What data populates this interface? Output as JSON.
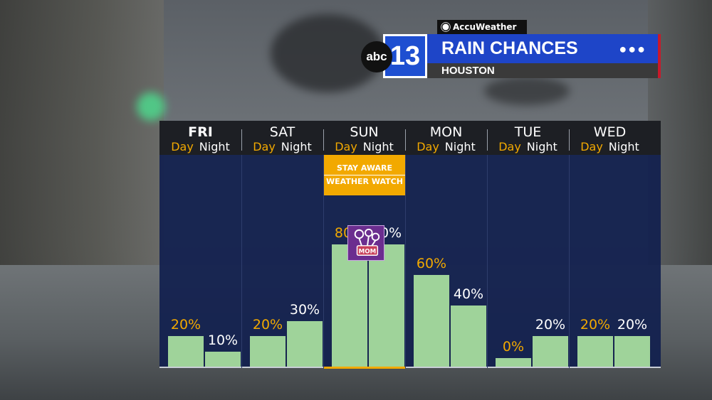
{
  "header": {
    "network_logo": "abc",
    "channel": "13",
    "partner": "AccuWeather",
    "title": "RAIN CHANCES",
    "location": "HOUSTON",
    "menu_icon": "more-dots-icon"
  },
  "chart_data": {
    "type": "bar",
    "categories": [
      "FRI",
      "SAT",
      "SUN",
      "MON",
      "TUE",
      "WED"
    ],
    "series": [
      {
        "name": "Day",
        "values": [
          20,
          20,
          80,
          60,
          0,
          20
        ],
        "labels": [
          "20%",
          "20%",
          "80%",
          "60%",
          "0%",
          "20%"
        ]
      },
      {
        "name": "Night",
        "values": [
          10,
          30,
          80,
          40,
          20,
          20
        ],
        "labels": [
          "10%",
          "30%",
          "80%",
          "40%",
          "20%",
          "20%"
        ]
      }
    ],
    "ylim": [
      0,
      100
    ],
    "day_label": "Day",
    "night_label": "Night",
    "highlighted_day": "SUN",
    "alert": {
      "line1": "STAY AWARE",
      "line2": "WEATHER WATCH"
    },
    "badge": {
      "text": "MOM",
      "icon": "mothers-day-flowers-icon"
    },
    "colors": {
      "bar": "#9fd39a",
      "day_text": "#f2a900",
      "night_text": "#ffffff",
      "alert": "#f2a900",
      "plot_bg": "#11204e"
    }
  }
}
